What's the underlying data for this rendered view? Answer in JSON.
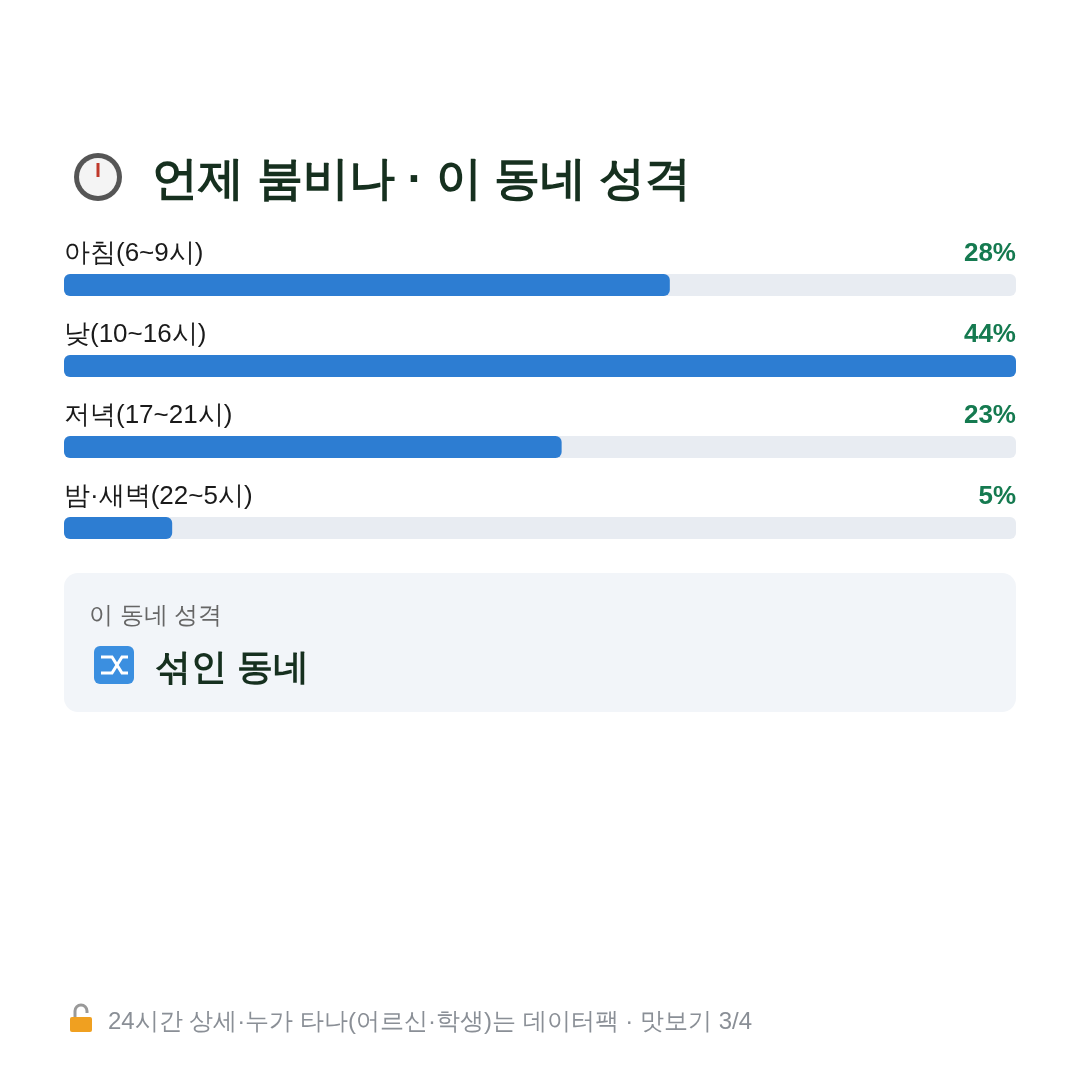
{
  "chart_data": {
    "type": "bar",
    "orientation": "horizontal",
    "title": "언제 붐비나 · 이 동네 성격",
    "categories": [
      "아침(6~9시)",
      "낮(10~16시)",
      "저녁(17~21시)",
      "밤·새벽(22~5시)"
    ],
    "values": [
      28,
      44,
      23,
      5
    ],
    "value_labels": [
      "28%",
      "44%",
      "23%",
      "5%"
    ],
    "color": "#2d7dd2",
    "annotations": [
      "이 동네 성격",
      "섞인 동네",
      "24시간 상세·누가 타나(어르신·학생)는 데이터팩 · 맛보기 3/4"
    ]
  }
}
